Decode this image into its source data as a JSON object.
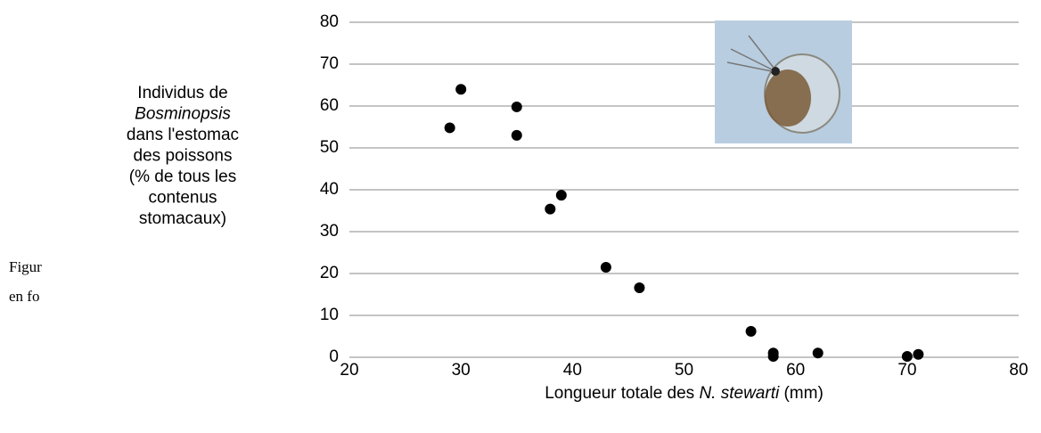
{
  "chart_data": {
    "type": "scatter",
    "side_text": [
      "Figur",
      "en fo"
    ],
    "ylabel_lines": [
      [
        "Individus de"
      ],
      [
        {
          "text": "Bosminopsis",
          "italic": true
        }
      ],
      [
        "dans l'estomac"
      ],
      [
        "des poissons"
      ],
      [
        "(% de tous les"
      ],
      [
        "contenus"
      ],
      [
        "stomacaux)"
      ]
    ],
    "xlabel_parts": [
      "Longueur totale des ",
      {
        "text": "N. stewarti",
        "italic": true
      },
      " (mm)"
    ],
    "x": [
      29,
      30,
      35,
      35,
      38,
      39,
      43,
      46,
      56,
      58,
      58,
      62,
      70,
      71
    ],
    "values": [
      54.8,
      64,
      59.8,
      53,
      35.4,
      38.7,
      21.5,
      16.6,
      6.2,
      1,
      0.2,
      1,
      0.2,
      0.7
    ],
    "color": "#000000",
    "xlim": [
      20,
      80
    ],
    "xticks": [
      20,
      30,
      40,
      50,
      60,
      70,
      80
    ],
    "ylim": [
      0,
      80
    ],
    "yticks": [
      0,
      10,
      20,
      30,
      40,
      50,
      60,
      70,
      80
    ],
    "grid": true
  }
}
